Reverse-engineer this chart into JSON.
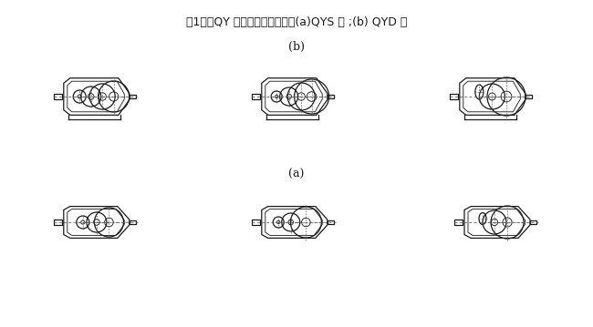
{
  "title": "图1　　QY 型减速器结构简图：(a)QYS 型 ;(b) QYD 型",
  "label_a": "(a)",
  "label_b": "(b)",
  "bg_color": "#ffffff",
  "line_color": "#1a1a1a",
  "dashed_color": "#555555",
  "title_fontsize": 9,
  "label_fontsize": 9
}
